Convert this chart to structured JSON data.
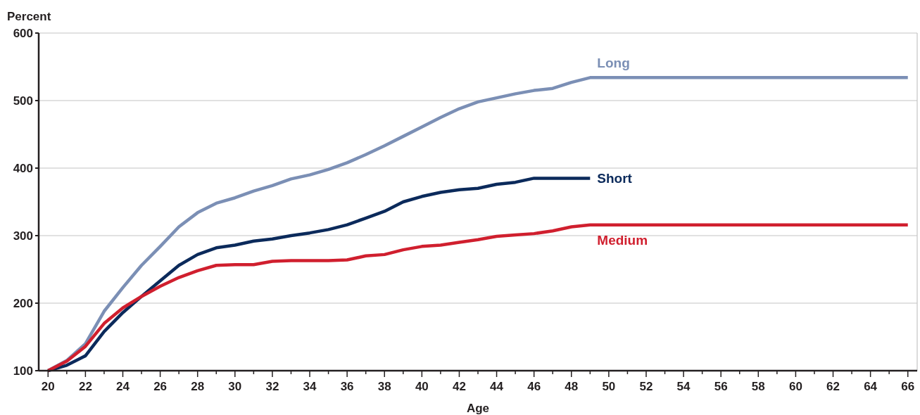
{
  "chart_data": {
    "type": "line",
    "ylabel": "Percent",
    "xlabel": "Age",
    "xlim": [
      19.5,
      66.5
    ],
    "ylim": [
      100,
      600
    ],
    "xticks": [
      20,
      {
        "value": 21,
        "label": null
      },
      22,
      {
        "value": 23,
        "label": null
      },
      24,
      {
        "value": 25,
        "label": null
      },
      26,
      {
        "value": 27,
        "label": null
      },
      28,
      {
        "value": 29,
        "label": null
      },
      30,
      {
        "value": 31,
        "label": null
      },
      32,
      {
        "value": 33,
        "label": null
      },
      34,
      {
        "value": 35,
        "label": null
      },
      36,
      {
        "value": 37,
        "label": null
      },
      38,
      {
        "value": 39,
        "label": null
      },
      40,
      {
        "value": 41,
        "label": null
      },
      42,
      {
        "value": 43,
        "label": null
      },
      44,
      {
        "value": 45,
        "label": null
      },
      46,
      {
        "value": 47,
        "label": null
      },
      48,
      {
        "value": 49,
        "label": null
      },
      50,
      {
        "value": 51,
        "label": null
      },
      52,
      {
        "value": 53,
        "label": null
      },
      54,
      {
        "value": 55,
        "label": null
      },
      56,
      {
        "value": 57,
        "label": null
      },
      58,
      {
        "value": 59,
        "label": null
      },
      60,
      {
        "value": 61,
        "label": null
      },
      62,
      {
        "value": 63,
        "label": null
      },
      64,
      {
        "value": 65,
        "label": null
      },
      66
    ],
    "yticks": [
      100,
      200,
      300,
      400,
      500,
      600
    ],
    "grid": "y",
    "legend": false,
    "marker": "none",
    "line_style": "solid",
    "series": [
      {
        "name": "Long",
        "color": "#7b8fb5",
        "x": [
          20,
          21,
          22,
          23,
          24,
          25,
          26,
          27,
          28,
          29,
          30,
          31,
          32,
          33,
          34,
          35,
          36,
          37,
          38,
          39,
          40,
          41,
          42,
          43,
          44,
          45,
          46,
          47,
          48,
          49,
          66
        ],
        "values": [
          100,
          115,
          140,
          188,
          223,
          256,
          284,
          313,
          334,
          348,
          356,
          366,
          374,
          384,
          390,
          398,
          408,
          420,
          433,
          447,
          461,
          475,
          488,
          498,
          504,
          510,
          515,
          518,
          527,
          534,
          534
        ]
      },
      {
        "name": "Short",
        "color": "#0b2a5b",
        "x": [
          20,
          21,
          22,
          23,
          24,
          25,
          26,
          27,
          28,
          29,
          30,
          31,
          32,
          33,
          34,
          35,
          36,
          37,
          38,
          39,
          40,
          41,
          42,
          43,
          44,
          45,
          46,
          47,
          48,
          49
        ],
        "values": [
          100,
          108,
          122,
          158,
          186,
          210,
          233,
          256,
          272,
          282,
          286,
          292,
          295,
          300,
          304,
          309,
          316,
          326,
          336,
          350,
          358,
          364,
          368,
          370,
          376,
          379,
          385,
          385,
          385,
          385
        ]
      },
      {
        "name": "Medium",
        "color": "#d01f2e",
        "x": [
          20,
          21,
          22,
          23,
          24,
          25,
          26,
          27,
          28,
          29,
          30,
          31,
          32,
          33,
          34,
          35,
          36,
          37,
          38,
          39,
          40,
          41,
          42,
          43,
          44,
          45,
          46,
          47,
          48,
          49,
          66
        ],
        "values": [
          100,
          114,
          136,
          170,
          193,
          210,
          225,
          238,
          248,
          256,
          257,
          257,
          262,
          263,
          263,
          263,
          264,
          270,
          272,
          279,
          284,
          286,
          290,
          294,
          299,
          301,
          303,
          307,
          313,
          316,
          316
        ]
      }
    ]
  }
}
